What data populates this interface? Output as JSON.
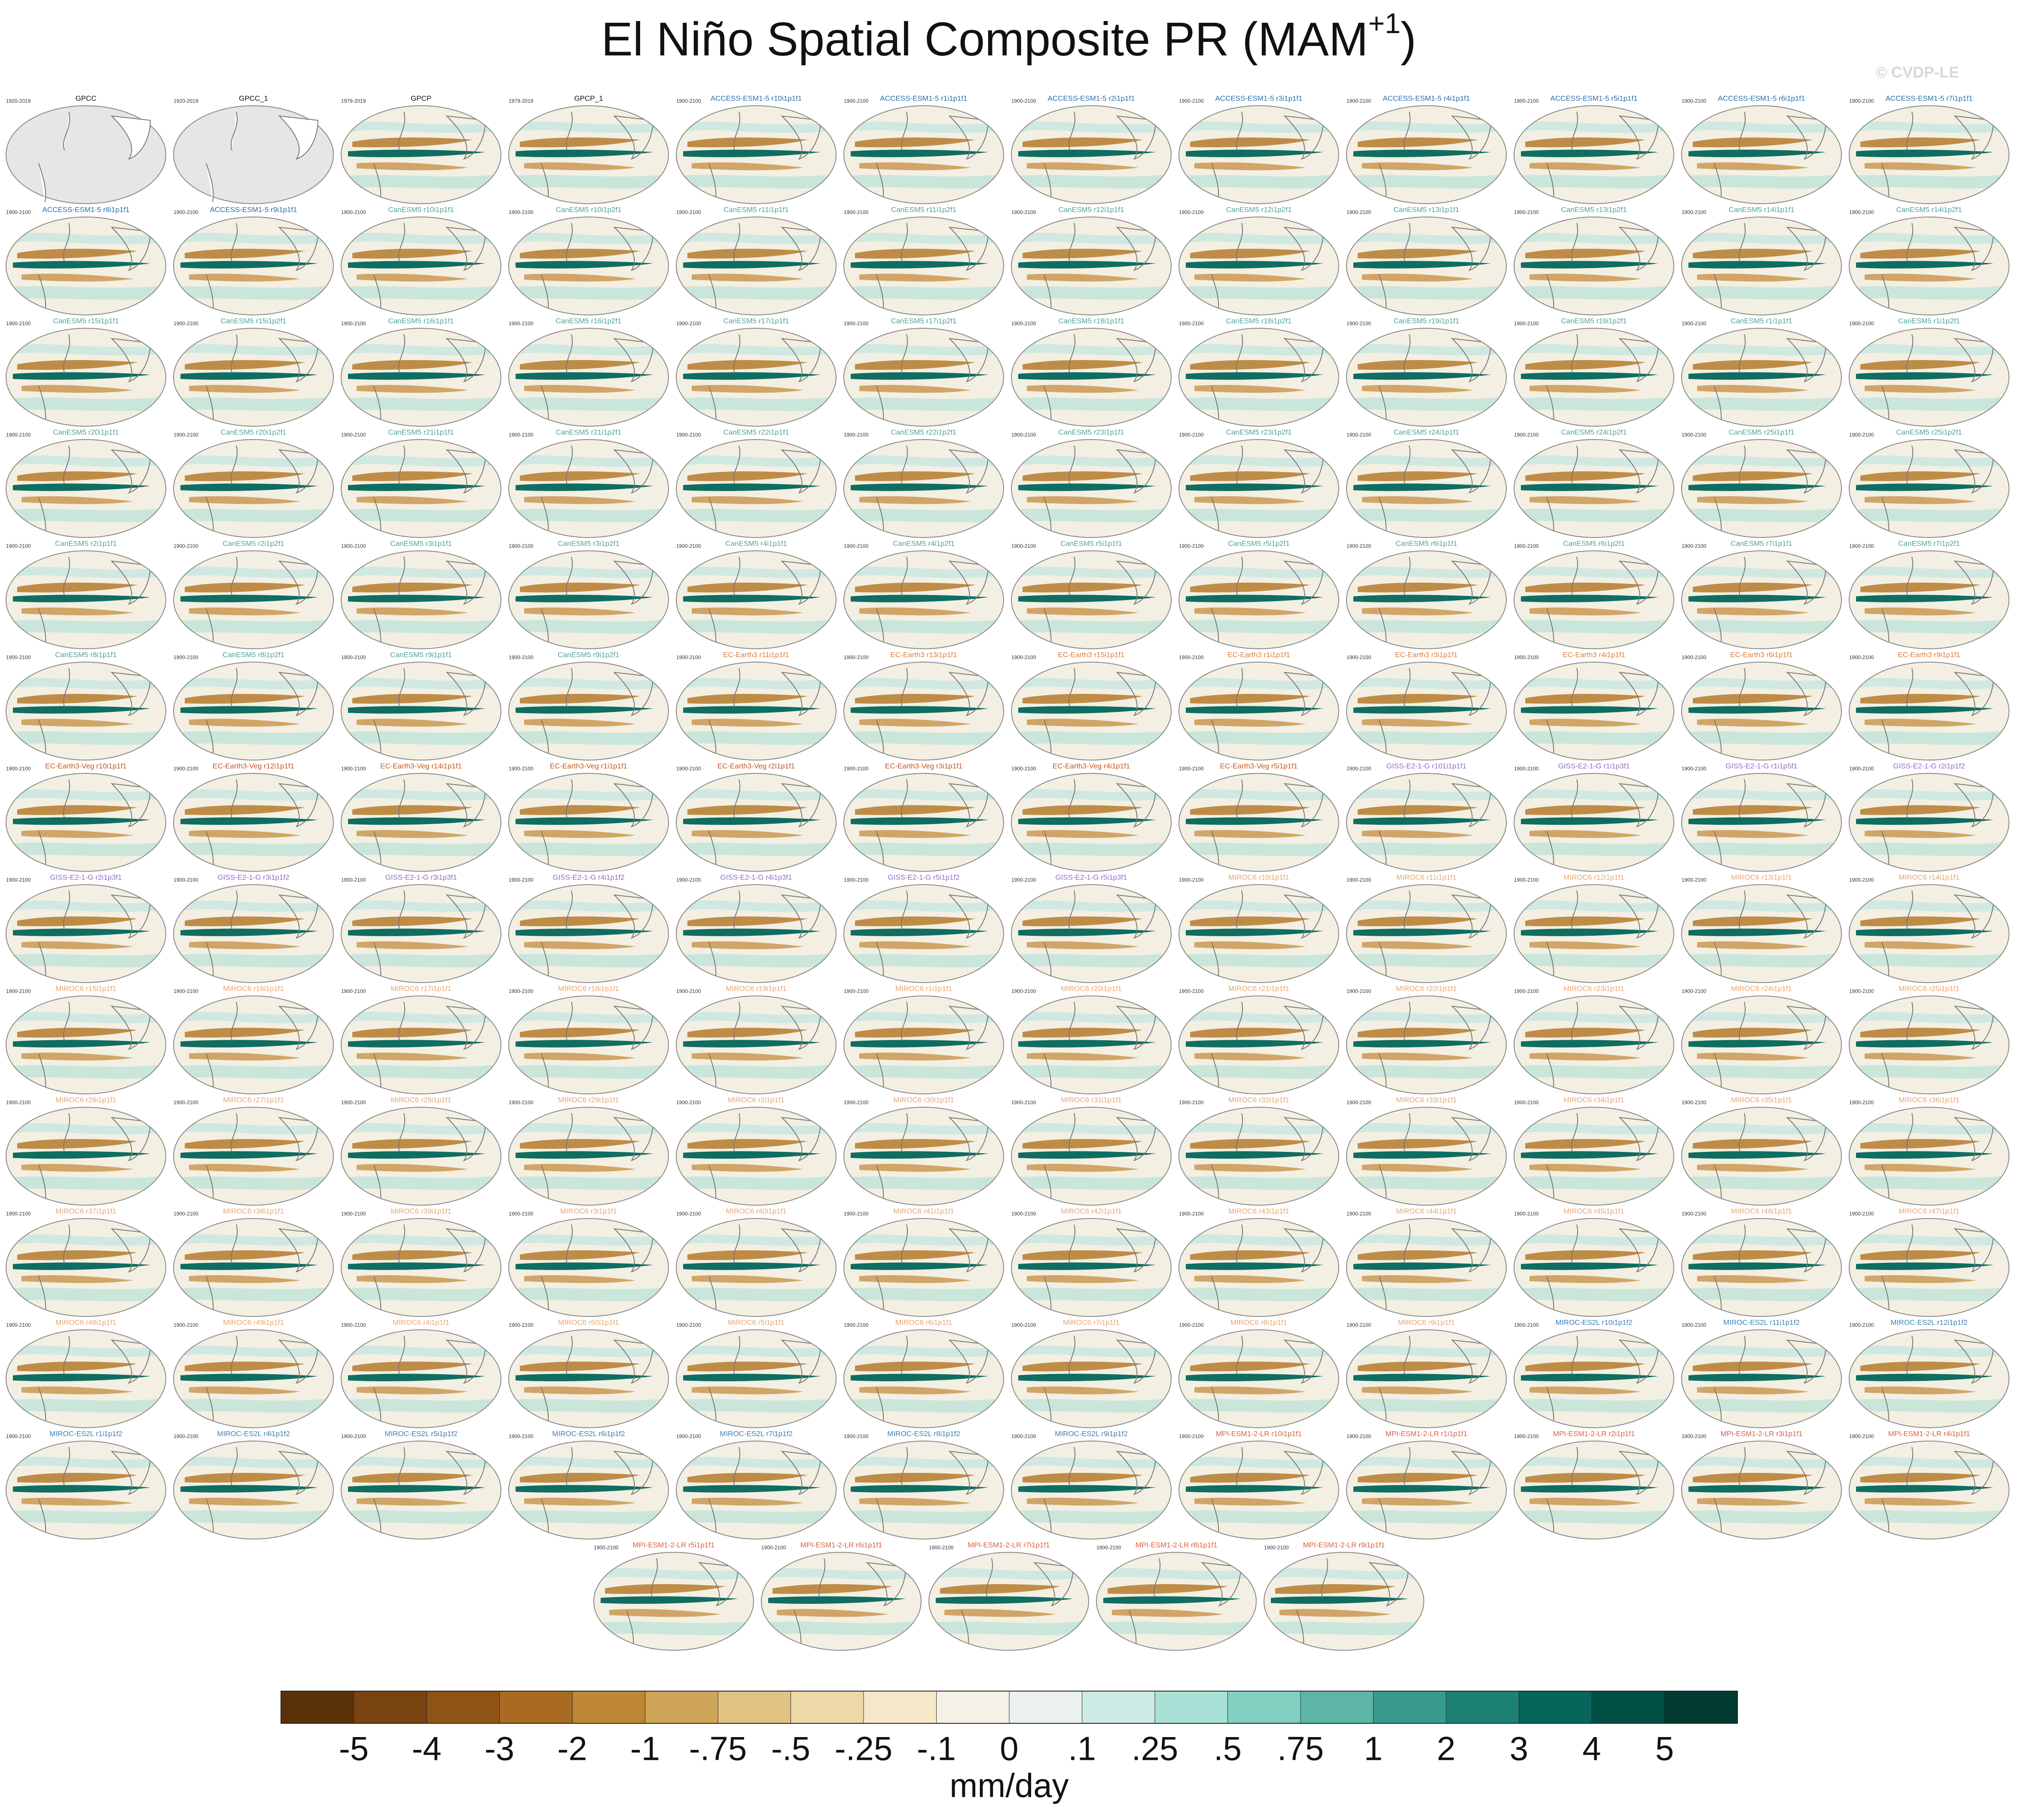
{
  "chart_data": {
    "type": "map-grid",
    "title": "El Niño Spatial Composite PR (MAM",
    "title_sup": "+1",
    "title_end": ")",
    "watermark": "© CVDP-LE",
    "groups": [
      {
        "color": "#111111",
        "panels": [
          {
            "title": "GPCC",
            "period": "1920-2019"
          },
          {
            "title": "GPCC_1",
            "period": "1920-2019"
          },
          {
            "title": "GPCP",
            "period": "1979-2019"
          },
          {
            "title": "GPCP_1",
            "period": "1979-2019"
          }
        ]
      },
      {
        "color": "#2a6fa8",
        "panels": [
          {
            "title": "ACCESS-ESM1-5 r10i1p1f1",
            "period": "1900-2100"
          },
          {
            "title": "ACCESS-ESM1-5 r1i1p1f1",
            "period": "1900-2100"
          },
          {
            "title": "ACCESS-ESM1-5 r2i1p1f1",
            "period": "1900-2100"
          },
          {
            "title": "ACCESS-ESM1-5 r3i1p1f1",
            "period": "1900-2100"
          },
          {
            "title": "ACCESS-ESM1-5 r4i1p1f1",
            "period": "1900-2100"
          },
          {
            "title": "ACCESS-ESM1-5 r5i1p1f1",
            "period": "1900-2100"
          },
          {
            "title": "ACCESS-ESM1-5 r6i1p1f1",
            "period": "1900-2100"
          },
          {
            "title": "ACCESS-ESM1-5 r7i1p1f1",
            "period": "1900-2100"
          },
          {
            "title": "ACCESS-ESM1-5 r8i1p1f1",
            "period": "1900-2100"
          },
          {
            "title": "ACCESS-ESM1-5 r9i1p1f1",
            "period": "1900-2100"
          }
        ]
      },
      {
        "color": "#4fa39a",
        "panels": [
          {
            "title": "CanESM5 r10i1p1f1",
            "period": "1900-2100"
          },
          {
            "title": "CanESM5 r10i1p2f1",
            "period": "1900-2100"
          },
          {
            "title": "CanESM5 r11i1p1f1",
            "period": "1900-2100"
          },
          {
            "title": "CanESM5 r11i1p2f1",
            "period": "1900-2100"
          },
          {
            "title": "CanESM5 r12i1p1f1",
            "period": "1900-2100"
          },
          {
            "title": "CanESM5 r12i1p2f1",
            "period": "1900-2100"
          },
          {
            "title": "CanESM5 r13i1p1f1",
            "period": "1900-2100"
          },
          {
            "title": "CanESM5 r13i1p2f1",
            "period": "1900-2100"
          },
          {
            "title": "CanESM5 r14i1p1f1",
            "period": "1900-2100"
          },
          {
            "title": "CanESM5 r14i1p2f1",
            "period": "1900-2100"
          },
          {
            "title": "CanESM5 r15i1p1f1",
            "period": "1900-2100"
          },
          {
            "title": "CanESM5 r15i1p2f1",
            "period": "1900-2100"
          },
          {
            "title": "CanESM5 r16i1p1f1",
            "period": "1900-2100"
          },
          {
            "title": "CanESM5 r16i1p2f1",
            "period": "1900-2100"
          },
          {
            "title": "CanESM5 r17i1p1f1",
            "period": "1900-2100"
          },
          {
            "title": "CanESM5 r17i1p2f1",
            "period": "1900-2100"
          },
          {
            "title": "CanESM5 r18i1p1f1",
            "period": "1900-2100"
          },
          {
            "title": "CanESM5 r18i1p2f1",
            "period": "1900-2100"
          },
          {
            "title": "CanESM5 r19i1p1f1",
            "period": "1900-2100"
          },
          {
            "title": "CanESM5 r19i1p2f1",
            "period": "1900-2100"
          },
          {
            "title": "CanESM5 r1i1p1f1",
            "period": "1900-2100"
          },
          {
            "title": "CanESM5 r1i1p2f1",
            "period": "1900-2100"
          },
          {
            "title": "CanESM5 r20i1p1f1",
            "period": "1900-2100"
          },
          {
            "title": "CanESM5 r20i1p2f1",
            "period": "1900-2100"
          },
          {
            "title": "CanESM5 r21i1p1f1",
            "period": "1900-2100"
          },
          {
            "title": "CanESM5 r21i1p2f1",
            "period": "1900-2100"
          },
          {
            "title": "CanESM5 r22i1p1f1",
            "period": "1900-2100"
          },
          {
            "title": "CanESM5 r22i1p2f1",
            "period": "1900-2100"
          },
          {
            "title": "CanESM5 r23i1p1f1",
            "period": "1900-2100"
          },
          {
            "title": "CanESM5 r23i1p2f1",
            "period": "1900-2100"
          },
          {
            "title": "CanESM5 r24i1p1f1",
            "period": "1900-2100"
          },
          {
            "title": "CanESM5 r24i1p2f1",
            "period": "1900-2100"
          },
          {
            "title": "CanESM5 r25i1p1f1",
            "period": "1900-2100"
          },
          {
            "title": "CanESM5 r25i1p2f1",
            "period": "1900-2100"
          },
          {
            "title": "CanESM5 r2i1p1f1",
            "period": "1900-2100"
          },
          {
            "title": "CanESM5 r2i1p2f1",
            "period": "1900-2100"
          },
          {
            "title": "CanESM5 r3i1p1f1",
            "period": "1900-2100"
          },
          {
            "title": "CanESM5 r3i1p2f1",
            "period": "1900-2100"
          },
          {
            "title": "CanESM5 r4i1p1f1",
            "period": "1900-2100"
          },
          {
            "title": "CanESM5 r4i1p2f1",
            "period": "1900-2100"
          },
          {
            "title": "CanESM5 r5i1p1f1",
            "period": "1900-2100"
          },
          {
            "title": "CanESM5 r5i1p2f1",
            "period": "1900-2100"
          },
          {
            "title": "CanESM5 r6i1p1f1",
            "period": "1900-2100"
          },
          {
            "title": "CanESM5 r6i1p2f1",
            "period": "1900-2100"
          },
          {
            "title": "CanESM5 r7i1p1f1",
            "period": "1900-2100"
          },
          {
            "title": "CanESM5 r7i1p2f1",
            "period": "1900-2100"
          },
          {
            "title": "CanESM5 r8i1p1f1",
            "period": "1900-2100"
          },
          {
            "title": "CanESM5 r8i1p2f1",
            "period": "1900-2100"
          },
          {
            "title": "CanESM5 r9i1p1f1",
            "period": "1900-2100"
          },
          {
            "title": "CanESM5 r9i1p2f1",
            "period": "1900-2100"
          }
        ]
      },
      {
        "color": "#e07b39",
        "panels": [
          {
            "title": "EC-Earth3 r11i1p1f1",
            "period": "1900-2100"
          },
          {
            "title": "EC-Earth3 r13i1p1f1",
            "period": "1900-2100"
          },
          {
            "title": "EC-Earth3 r15i1p1f1",
            "period": "1900-2100"
          },
          {
            "title": "EC-Earth3 r1i1p1f1",
            "period": "1900-2100"
          },
          {
            "title": "EC-Earth3 r3i1p1f1",
            "period": "1900-2100"
          },
          {
            "title": "EC-Earth3 r4i1p1f1",
            "period": "1900-2100"
          },
          {
            "title": "EC-Earth3 r6i1p1f1",
            "period": "1900-2100"
          },
          {
            "title": "EC-Earth3 r9i1p1f1",
            "period": "1900-2100"
          }
        ]
      },
      {
        "color": "#c9561c",
        "panels": [
          {
            "title": "EC-Earth3-Veg r10i1p1f1",
            "period": "1900-2100"
          },
          {
            "title": "EC-Earth3-Veg r12i1p1f1",
            "period": "1900-2100"
          },
          {
            "title": "EC-Earth3-Veg r14i1p1f1",
            "period": "1900-2100"
          },
          {
            "title": "EC-Earth3-Veg r1i1p1f1",
            "period": "1900-2100"
          },
          {
            "title": "EC-Earth3-Veg r2i1p1f1",
            "period": "1900-2100"
          },
          {
            "title": "EC-Earth3-Veg r3i1p1f1",
            "period": "1900-2100"
          },
          {
            "title": "EC-Earth3-Veg r4i1p1f1",
            "period": "1900-2100"
          },
          {
            "title": "EC-Earth3-Veg r5i1p1f1",
            "period": "1900-2100"
          }
        ]
      },
      {
        "color": "#8a6fc9",
        "panels": [
          {
            "title": "GISS-E2-1-G r101i1p1f1",
            "period": "1900-2100"
          },
          {
            "title": "GISS-E2-1-G r1i1p3f1",
            "period": "1900-2100"
          },
          {
            "title": "GISS-E2-1-G r1i1p5f1",
            "period": "1900-2100"
          },
          {
            "title": "GISS-E2-1-G r2i1p1f2",
            "period": "1900-2100"
          },
          {
            "title": "GISS-E2-1-G r2i1p3f1",
            "period": "1900-2100"
          },
          {
            "title": "GISS-E2-1-G r3i1p1f2",
            "period": "1900-2100"
          },
          {
            "title": "GISS-E2-1-G r3i1p3f1",
            "period": "1900-2100"
          },
          {
            "title": "GISS-E2-1-G r4i1p1f2",
            "period": "1900-2100"
          },
          {
            "title": "GISS-E2-1-G r4i1p3f1",
            "period": "1900-2100"
          },
          {
            "title": "GISS-E2-1-G r5i1p1f2",
            "period": "1900-2100"
          },
          {
            "title": "GISS-E2-1-G r5i1p3f1",
            "period": "1900-2100"
          }
        ]
      },
      {
        "color": "#e8a572",
        "panels": [
          {
            "title": "MIROC6 r10i1p1f1",
            "period": "1900-2100"
          },
          {
            "title": "MIROC6 r11i1p1f1",
            "period": "1900-2100"
          },
          {
            "title": "MIROC6 r12i1p1f1",
            "period": "1900-2100"
          },
          {
            "title": "MIROC6 r13i1p1f1",
            "period": "1900-2100"
          },
          {
            "title": "MIROC6 r14i1p1f1",
            "period": "1900-2100"
          },
          {
            "title": "MIROC6 r15i1p1f1",
            "period": "1900-2100"
          },
          {
            "title": "MIROC6 r16i1p1f1",
            "period": "1900-2100"
          },
          {
            "title": "MIROC6 r17i1p1f1",
            "period": "1900-2100"
          },
          {
            "title": "MIROC6 r18i1p1f1",
            "period": "1900-2100"
          },
          {
            "title": "MIROC6 r19i1p1f1",
            "period": "1900-2100"
          },
          {
            "title": "MIROC6 r1i1p1f1",
            "period": "1900-2100"
          },
          {
            "title": "MIROC6 r20i1p1f1",
            "period": "1900-2100"
          },
          {
            "title": "MIROC6 r21i1p1f1",
            "period": "1900-2100"
          },
          {
            "title": "MIROC6 r22i1p1f1",
            "period": "1900-2100"
          },
          {
            "title": "MIROC6 r23i1p1f1",
            "period": "1900-2100"
          },
          {
            "title": "MIROC6 r24i1p1f1",
            "period": "1900-2100"
          },
          {
            "title": "MIROC6 r25i1p1f1",
            "period": "1900-2100"
          },
          {
            "title": "MIROC6 r26i1p1f1",
            "period": "1900-2100"
          },
          {
            "title": "MIROC6 r27i1p1f1",
            "period": "1900-2100"
          },
          {
            "title": "MIROC6 r28i1p1f1",
            "period": "1900-2100"
          },
          {
            "title": "MIROC6 r29i1p1f1",
            "period": "1900-2100"
          },
          {
            "title": "MIROC6 r2i1p1f1",
            "period": "1900-2100"
          },
          {
            "title": "MIROC6 r30i1p1f1",
            "period": "1900-2100"
          },
          {
            "title": "MIROC6 r31i1p1f1",
            "period": "1900-2100"
          },
          {
            "title": "MIROC6 r32i1p1f1",
            "period": "1900-2100"
          },
          {
            "title": "MIROC6 r33i1p1f1",
            "period": "1900-2100"
          },
          {
            "title": "MIROC6 r34i1p1f1",
            "period": "1900-2100"
          },
          {
            "title": "MIROC6 r35i1p1f1",
            "period": "1900-2100"
          },
          {
            "title": "MIROC6 r36i1p1f1",
            "period": "1900-2100"
          },
          {
            "title": "MIROC6 r37i1p1f1",
            "period": "1900-2100"
          },
          {
            "title": "MIROC6 r38i1p1f1",
            "period": "1900-2100"
          },
          {
            "title": "MIROC6 r39i1p1f1",
            "period": "1900-2100"
          },
          {
            "title": "MIROC6 r3i1p1f1",
            "period": "1900-2100"
          },
          {
            "title": "MIROC6 r40i1p1f1",
            "period": "1900-2100"
          },
          {
            "title": "MIROC6 r41i1p1f1",
            "period": "1900-2100"
          },
          {
            "title": "MIROC6 r42i1p1f1",
            "period": "1900-2100"
          },
          {
            "title": "MIROC6 r43i1p1f1",
            "period": "1900-2100"
          },
          {
            "title": "MIROC6 r44i1p1f1",
            "period": "1900-2100"
          },
          {
            "title": "MIROC6 r45i1p1f1",
            "period": "1900-2100"
          },
          {
            "title": "MIROC6 r46i1p1f1",
            "period": "1900-2100"
          },
          {
            "title": "MIROC6 r47i1p1f1",
            "period": "1900-2100"
          },
          {
            "title": "MIROC6 r48i1p1f1",
            "period": "1900-2100"
          },
          {
            "title": "MIROC6 r49i1p1f1",
            "period": "1900-2100"
          },
          {
            "title": "MIROC6 r4i1p1f1",
            "period": "1900-2100"
          },
          {
            "title": "MIROC6 r50i1p1f1",
            "period": "1900-2100"
          },
          {
            "title": "MIROC6 r5i1p1f1",
            "period": "1900-2100"
          },
          {
            "title": "MIROC6 r6i1p1f1",
            "period": "1900-2100"
          },
          {
            "title": "MIROC6 r7i1p1f1",
            "period": "1900-2100"
          },
          {
            "title": "MIROC6 r8i1p1f1",
            "period": "1900-2100"
          },
          {
            "title": "MIROC6 r9i1p1f1",
            "period": "1900-2100"
          }
        ]
      },
      {
        "color": "#3a7fb8",
        "panels": [
          {
            "title": "MIROC-ES2L r10i1p1f2",
            "period": "1900-2100"
          },
          {
            "title": "MIROC-ES2L r11i1p1f2",
            "period": "1900-2100"
          },
          {
            "title": "MIROC-ES2L r12i1p1f2",
            "period": "1900-2100"
          },
          {
            "title": "MIROC-ES2L r1i1p1f2",
            "period": "1900-2100"
          },
          {
            "title": "MIROC-ES2L r4i1p1f2",
            "period": "1900-2100"
          },
          {
            "title": "MIROC-ES2L r5i1p1f2",
            "period": "1900-2100"
          },
          {
            "title": "MIROC-ES2L r6i1p1f2",
            "period": "1900-2100"
          },
          {
            "title": "MIROC-ES2L r7i1p1f2",
            "period": "1900-2100"
          },
          {
            "title": "MIROC-ES2L r8i1p1f2",
            "period": "1900-2100"
          },
          {
            "title": "MIROC-ES2L r9i1p1f2",
            "period": "1900-2100"
          }
        ]
      },
      {
        "color": "#d9603b",
        "panels": [
          {
            "title": "MPI-ESM1-2-LR r10i1p1f1",
            "period": "1900-2100"
          },
          {
            "title": "MPI-ESM1-2-LR r1i1p1f1",
            "period": "1900-2100"
          },
          {
            "title": "MPI-ESM1-2-LR r2i1p1f1",
            "period": "1900-2100"
          },
          {
            "title": "MPI-ESM1-2-LR r3i1p1f1",
            "period": "1900-2100"
          },
          {
            "title": "MPI-ESM1-2-LR r4i1p1f1",
            "period": "1900-2100"
          },
          {
            "title": "MPI-ESM1-2-LR r5i1p1f1",
            "period": "1900-2100"
          },
          {
            "title": "MPI-ESM1-2-LR r6i1p1f1",
            "period": "1900-2100"
          },
          {
            "title": "MPI-ESM1-2-LR r7i1p1f1",
            "period": "1900-2100"
          },
          {
            "title": "MPI-ESM1-2-LR r8i1p1f1",
            "period": "1900-2100"
          },
          {
            "title": "MPI-ESM1-2-LR r9i1p1f1",
            "period": "1900-2100"
          }
        ]
      }
    ],
    "colorbar": {
      "colors": [
        "#5a3208",
        "#7a4410",
        "#8f5414",
        "#a86b21",
        "#bd8734",
        "#cfa55a",
        "#e0c283",
        "#edd9a8",
        "#f4e8c8",
        "#f5f1e6",
        "#ebf1ef",
        "#cdebe4",
        "#a9e0d5",
        "#83cfc0",
        "#5db5a6",
        "#389a8c",
        "#1c8074",
        "#07665c",
        "#004f45",
        "#003a30"
      ],
      "labels": [
        -5,
        -4,
        -3,
        -2,
        -1,
        {
          "value": -0.75,
          "label": "-.75"
        },
        {
          "value": -0.5,
          "label": "-.5"
        },
        {
          "value": -0.25,
          "label": "-.25"
        },
        {
          "value": -0.1,
          "label": "-.1"
        },
        0,
        {
          "value": 0.1,
          "label": ".1"
        },
        {
          "value": 0.25,
          "label": ".25"
        },
        {
          "value": 0.5,
          "label": ".5"
        },
        {
          "value": 0.75,
          "label": ".75"
        },
        1,
        2,
        3,
        4,
        5
      ],
      "units": "mm/day"
    }
  }
}
